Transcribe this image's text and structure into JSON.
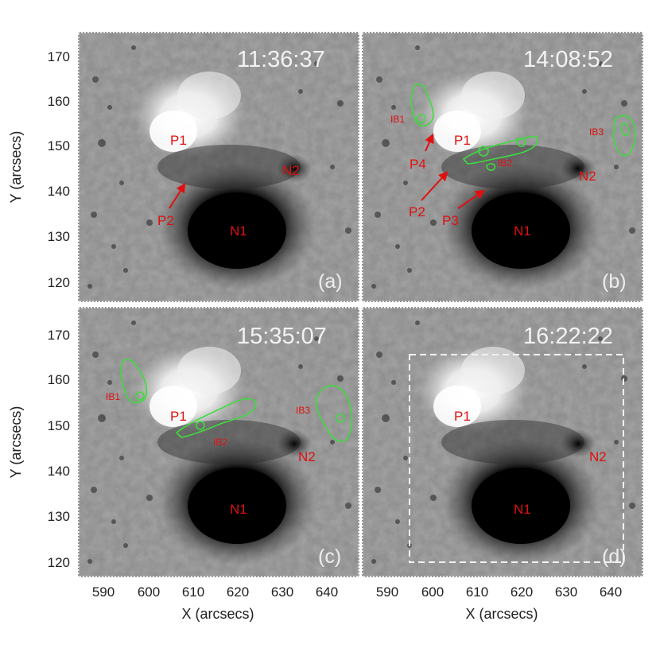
{
  "axes": {
    "xlabel": "X (arcsecs)",
    "ylabel": "Y (arcsecs)",
    "xticks": [
      "590",
      "600",
      "610",
      "620",
      "630",
      "640"
    ],
    "yticks": [
      "170",
      "160",
      "150",
      "140",
      "130",
      "120"
    ]
  },
  "panels": [
    {
      "time": "11:36:37",
      "label": "(a)",
      "features": {
        "P1": "P1",
        "N1": "N1",
        "N2": "N2",
        "P2": "P2"
      }
    },
    {
      "time": "14:08:52",
      "label": "(b)",
      "features": {
        "P1": "P1",
        "N1": "N1",
        "N2": "N2",
        "P2": "P2",
        "P3": "P3",
        "P4": "P4",
        "IB1": "IB1",
        "IB2": "IB2",
        "IB3": "IB3"
      }
    },
    {
      "time": "15:35:07",
      "label": "(c)",
      "features": {
        "P1": "P1",
        "N1": "N1",
        "N2": "N2",
        "IB1": "IB1",
        "IB2": "IB2",
        "IB3": "IB3"
      }
    },
    {
      "time": "16:22:22",
      "label": "(d)",
      "features": {
        "P1": "P1",
        "N1": "N1",
        "N2": "N2"
      }
    }
  ],
  "colors": {
    "annotation": "#e01010",
    "contour": "#3ddc3d",
    "timestamp": "#f2f2f2"
  }
}
